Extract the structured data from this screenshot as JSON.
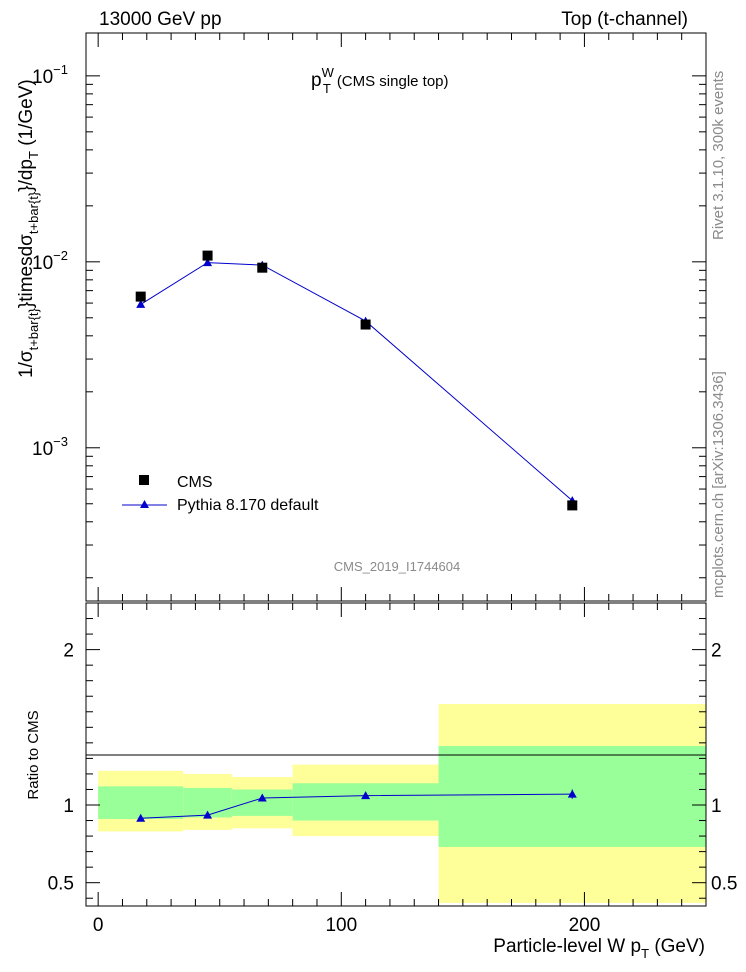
{
  "header": {
    "left": "13000 GeV pp",
    "right": "Top (t-channel)"
  },
  "side": {
    "rivet": "Rivet 3.1.10,  300k events",
    "mcplots": "mcplots.cern.ch [arXiv:1306.3436]"
  },
  "colors": {
    "mc": "#0000cc",
    "data": "#000000",
    "band_inner": "#99ff99",
    "band_outer": "#ffff99"
  },
  "chart_data": [
    {
      "type": "scatter",
      "title_main": "p",
      "title_sup": "W",
      "title_sub": "T",
      "title_suffix": "(CMS single top)",
      "analysis": "CMS_2019_I1744604",
      "ylabel_main": "1/σ",
      "ylabel_sub1": "t+bar{t}",
      "ylabel_mid": "}timesdσ",
      "ylabel_sub2": "t+bar{t}",
      "ylabel_end": "}/dp",
      "ylabel_sub3": "T",
      "ylabel_unit": " (1/GeV)",
      "yscale": "log",
      "ylim": [
        0.00015,
        0.17
      ],
      "yticks": [
        {
          "v": 0.1,
          "base": "10",
          "exp": "−1"
        },
        {
          "v": 0.01,
          "base": "10",
          "exp": "−2"
        },
        {
          "v": 0.001,
          "base": "10",
          "exp": "−3"
        }
      ],
      "xlim": [
        -5,
        250
      ],
      "legend_position": "bottom-left",
      "series": [
        {
          "name": "CMS",
          "marker": "square",
          "x": [
            17.5,
            45,
            67.5,
            110,
            195
          ],
          "y": [
            0.0065,
            0.0108,
            0.0093,
            0.0046,
            0.00049
          ]
        },
        {
          "name": "Pythia 8.170 default",
          "marker": "triangle",
          "x": [
            17.5,
            45,
            67.5,
            110,
            195
          ],
          "y": [
            0.0059,
            0.0099,
            0.0096,
            0.0048,
            0.00052
          ]
        }
      ]
    },
    {
      "type": "line",
      "ylabel": "Ratio to CMS",
      "xlabel_main": "Particle-level W p",
      "xlabel_sub": "T",
      "xlabel_unit": " (GeV)",
      "xlim": [
        -5,
        250
      ],
      "xticks": [
        0,
        100,
        200
      ],
      "ylim": [
        0.35,
        2.3
      ],
      "yticks": [
        0.5,
        1,
        2
      ],
      "reference_line": 1,
      "bins": [
        {
          "lo": 0,
          "hi": 35,
          "inner": [
            0.91,
            1.12
          ],
          "outer": [
            0.83,
            1.22
          ]
        },
        {
          "lo": 35,
          "hi": 55,
          "inner": [
            0.92,
            1.11
          ],
          "outer": [
            0.84,
            1.2
          ]
        },
        {
          "lo": 55,
          "hi": 80,
          "inner": [
            0.93,
            1.1
          ],
          "outer": [
            0.85,
            1.18
          ]
        },
        {
          "lo": 80,
          "hi": 140,
          "inner": [
            0.9,
            1.14
          ],
          "outer": [
            0.8,
            1.26
          ]
        },
        {
          "lo": 140,
          "hi": 250,
          "inner": [
            0.73,
            1.38
          ],
          "outer": [
            0.37,
            1.65
          ]
        }
      ],
      "series": [
        {
          "name": "Pythia 8.170 default",
          "x": [
            17.5,
            45,
            67.5,
            110,
            195
          ],
          "y": [
            0.915,
            0.935,
            1.045,
            1.06,
            1.07
          ],
          "err": [
            0.008,
            0.008,
            0.01,
            0.012,
            0.03
          ]
        }
      ]
    }
  ]
}
